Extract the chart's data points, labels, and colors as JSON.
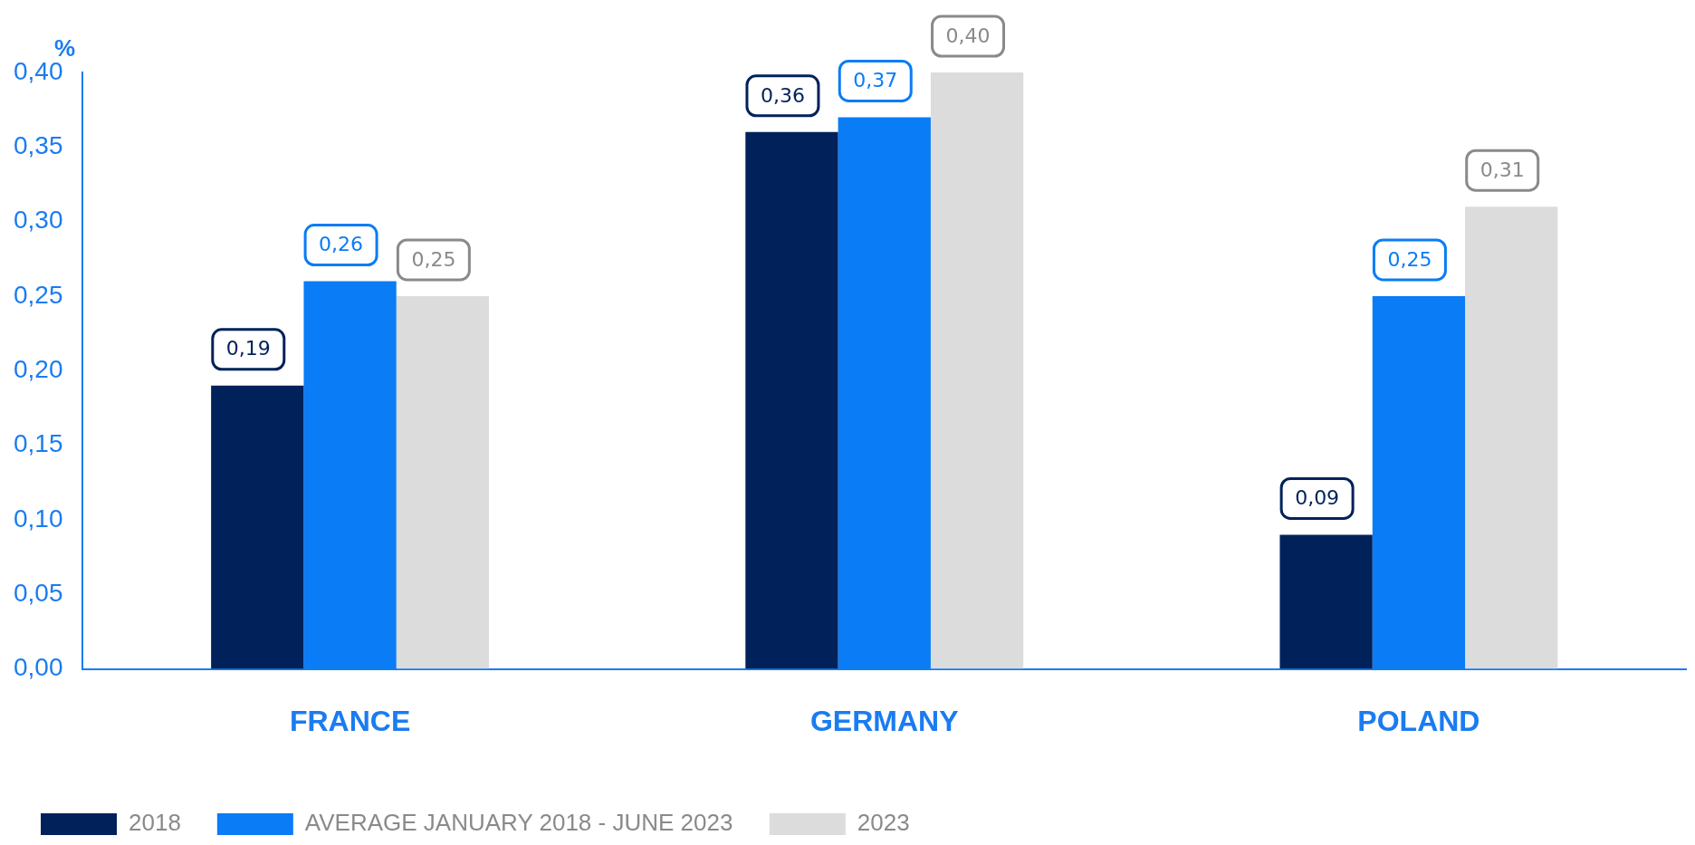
{
  "chart_data": {
    "type": "bar",
    "ylabel": "%",
    "categories": [
      "FRANCE",
      "GERMANY",
      "POLAND"
    ],
    "series": [
      {
        "name": "2018",
        "color": "#00215a",
        "values": [
          0.19,
          0.36,
          0.09
        ],
        "value_labels": [
          "0,19",
          "0,36",
          "0,09"
        ]
      },
      {
        "name": "AVERAGE JANUARY 2018 - JUNE 2023",
        "color": "#0a7cf6",
        "values": [
          0.26,
          0.37,
          0.25
        ],
        "value_labels": [
          "0,26",
          "0,37",
          "0,25"
        ]
      },
      {
        "name": "2023",
        "color": "#dcdcdc",
        "values": [
          0.25,
          0.4,
          0.31
        ],
        "value_labels": [
          "0,25",
          "0,40",
          "0,31"
        ]
      }
    ],
    "ylim": [
      0,
      0.4
    ],
    "yticks": [
      {
        "value": 0,
        "label": "0,00"
      },
      {
        "value": 0.05,
        "label": "0,05"
      },
      {
        "value": 0.1,
        "label": "0,10"
      },
      {
        "value": 0.15,
        "label": "0,15"
      },
      {
        "value": 0.2,
        "label": "0,20"
      },
      {
        "value": 0.25,
        "label": "0,25"
      },
      {
        "value": 0.3,
        "label": "0,30"
      },
      {
        "value": 0.35,
        "label": "0,35"
      },
      {
        "value": 0.4,
        "label": "0,40"
      }
    ],
    "grid": false,
    "legend": "bottom left"
  }
}
